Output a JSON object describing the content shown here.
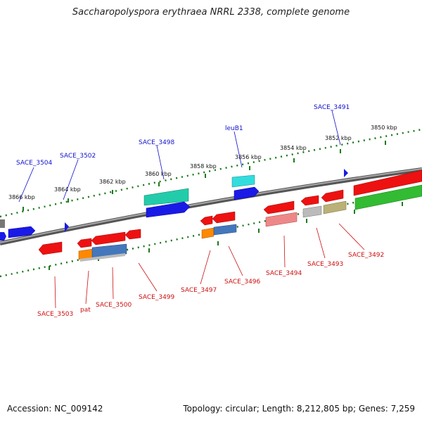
{
  "title": "Saccharopolyspora erythraea NRRL 2338, complete genome",
  "footer": {
    "accession": "Accession: NC_009142",
    "topology": "Topology: circular; Length: 8,212,805 bp; Genes: 7,259"
  },
  "scale_labels": [
    "3866 kbp",
    "3864 kbp",
    "3862 kbp",
    "3860 kbp",
    "3858 kbp",
    "3856 kbp",
    "3854 kbp",
    "3852 kbp",
    "3850 kbp"
  ],
  "forward_gene_labels": [
    "SACE_3504",
    "SACE_3502",
    "SACE_3498",
    "leuB1",
    "SACE_3491"
  ],
  "reverse_gene_labels": [
    "SACE_3503",
    "pat",
    "SACE_3500",
    "SACE_3499",
    "SACE_3497",
    "SACE_3496",
    "SACE_3494",
    "SACE_3493",
    "SACE_3492"
  ],
  "colors": {
    "forward_label": "#1010cc",
    "reverse_label": "#cc1010",
    "backbone": "#777777",
    "ticks": "#1a7a1a"
  }
}
